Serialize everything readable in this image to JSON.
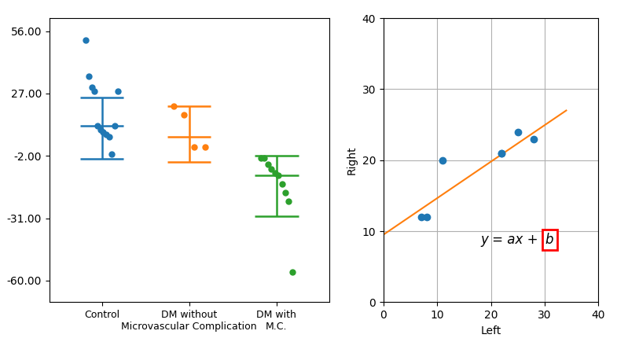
{
  "chart_data": [
    {
      "type": "strip",
      "categories": [
        "Control",
        "DM without\nMicrovascular Complication",
        "DM with\nM.C."
      ],
      "values": [
        [
          52,
          35,
          30,
          28,
          12,
          10,
          9,
          8,
          7,
          -1,
          12,
          28
        ],
        [
          21,
          17,
          2,
          2
        ],
        [
          -3,
          -3,
          -6,
          -8,
          -10,
          -11,
          -15,
          -19,
          -23,
          -56
        ]
      ],
      "mean": [
        12.0,
        7.0,
        -11.0
      ],
      "upper": [
        25.0,
        21.0,
        -2.0
      ],
      "lower": [
        -3.5,
        -5.0,
        -30.0
      ],
      "ylim": [
        -70,
        62
      ],
      "yticks": [
        {
          "value": 56.0,
          "label": "56.00"
        },
        {
          "value": 27.0,
          "label": "27.00"
        },
        {
          "value": -2.0,
          "label": "-2.00"
        },
        {
          "value": -31.0,
          "label": "-31.00"
        },
        {
          "value": -60.0,
          "label": "-60.00"
        }
      ],
      "grid": false
    },
    {
      "type": "scatter",
      "xlabel": "Left",
      "ylabel": "Right",
      "series": [
        {
          "type": "scatter",
          "x": [
            7,
            8,
            11,
            22,
            22,
            25,
            28
          ],
          "values": [
            12,
            12,
            20,
            21,
            21,
            24,
            23
          ]
        },
        {
          "type": "line",
          "x": [
            0,
            34
          ],
          "values": [
            9.5,
            27.0
          ]
        }
      ],
      "xlim": [
        0,
        40
      ],
      "ylim": [
        0,
        40
      ],
      "xticks": [
        0,
        10,
        20,
        30,
        40
      ],
      "yticks": [
        0,
        10,
        20,
        30,
        40
      ],
      "grid": true,
      "annotations": [
        "y = ax + ",
        "b"
      ]
    }
  ]
}
